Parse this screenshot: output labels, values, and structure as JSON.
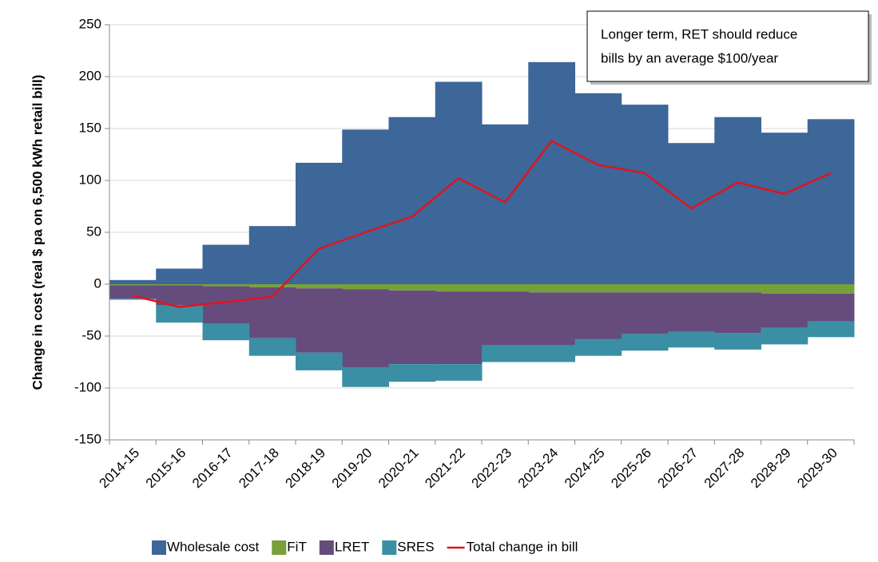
{
  "chart_data": {
    "type": "step_area",
    "y_label": "Change in cost (real $ pa on 6,500 kWh retail bill)",
    "annotation": [
      "Longer term, RET should reduce",
      "bills by an average $100/year"
    ],
    "categories": [
      "2014-15",
      "2015-16",
      "2016-17",
      "2017-18",
      "2018-19",
      "2019-20",
      "2020-21",
      "2021-22",
      "2022-23",
      "2023-24",
      "2024-25",
      "2025-26",
      "2026-27",
      "2027-28",
      "2028-29",
      "2029-30"
    ],
    "series": [
      {
        "name": "Wholesale cost",
        "color": "#3d6699",
        "type": "step_area",
        "values": [
          4,
          15,
          38,
          56,
          117,
          149,
          161,
          195,
          154,
          214,
          184,
          173,
          136,
          161,
          146,
          159
        ]
      },
      {
        "name": "FiT",
        "color": "#77a03a",
        "type": "step_area",
        "values": [
          -1,
          -1,
          -2,
          -3,
          -4,
          -5,
          -6,
          -7,
          -7,
          -8,
          -8,
          -8,
          -8,
          -8,
          -9,
          -9
        ]
      },
      {
        "name": "LRET",
        "color": "#654c7d",
        "type": "step_area",
        "values": [
          -13,
          -19,
          -36,
          -49,
          -62,
          -75,
          -71,
          -70,
          -52,
          -51,
          -45,
          -40,
          -38,
          -39,
          -33,
          -27
        ]
      },
      {
        "name": "SRES",
        "color": "#3a8fa5",
        "type": "step_area",
        "values": [
          -1,
          -17,
          -16,
          -17,
          -17,
          -19,
          -17,
          -16,
          -16,
          -16,
          -16,
          -16,
          -15,
          -16,
          -16,
          -15
        ]
      },
      {
        "name": "Total change in bill",
        "color": "#e0141e",
        "type": "line",
        "values": [
          -11,
          -22,
          -17,
          -12,
          34,
          50,
          65,
          102,
          79,
          138,
          115,
          107,
          73,
          98,
          87,
          107
        ]
      }
    ],
    "ylim": [
      -150,
      250
    ],
    "yticks": [
      -150,
      -100,
      -50,
      0,
      50,
      100,
      150,
      200,
      250
    ],
    "grid": true
  }
}
